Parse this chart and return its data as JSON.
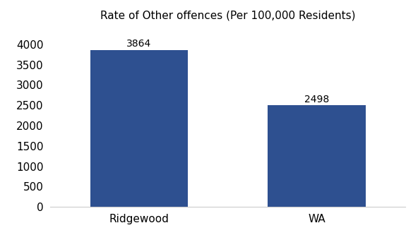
{
  "categories": [
    "Ridgewood",
    "WA"
  ],
  "values": [
    3864,
    2498
  ],
  "bar_color": "#2E5090",
  "title": "Rate of Other offences (Per 100,000 Residents)",
  "title_fontsize": 11,
  "title_fontweight": "normal",
  "label_fontsize": 11,
  "value_fontsize": 10,
  "value_fontweight": "normal",
  "ylim": [
    0,
    4400
  ],
  "yticks": [
    0,
    500,
    1000,
    1500,
    2000,
    2500,
    3000,
    3500,
    4000
  ],
  "background_color": "#ffffff",
  "bar_width": 0.55,
  "bar_positions": [
    0,
    1
  ]
}
